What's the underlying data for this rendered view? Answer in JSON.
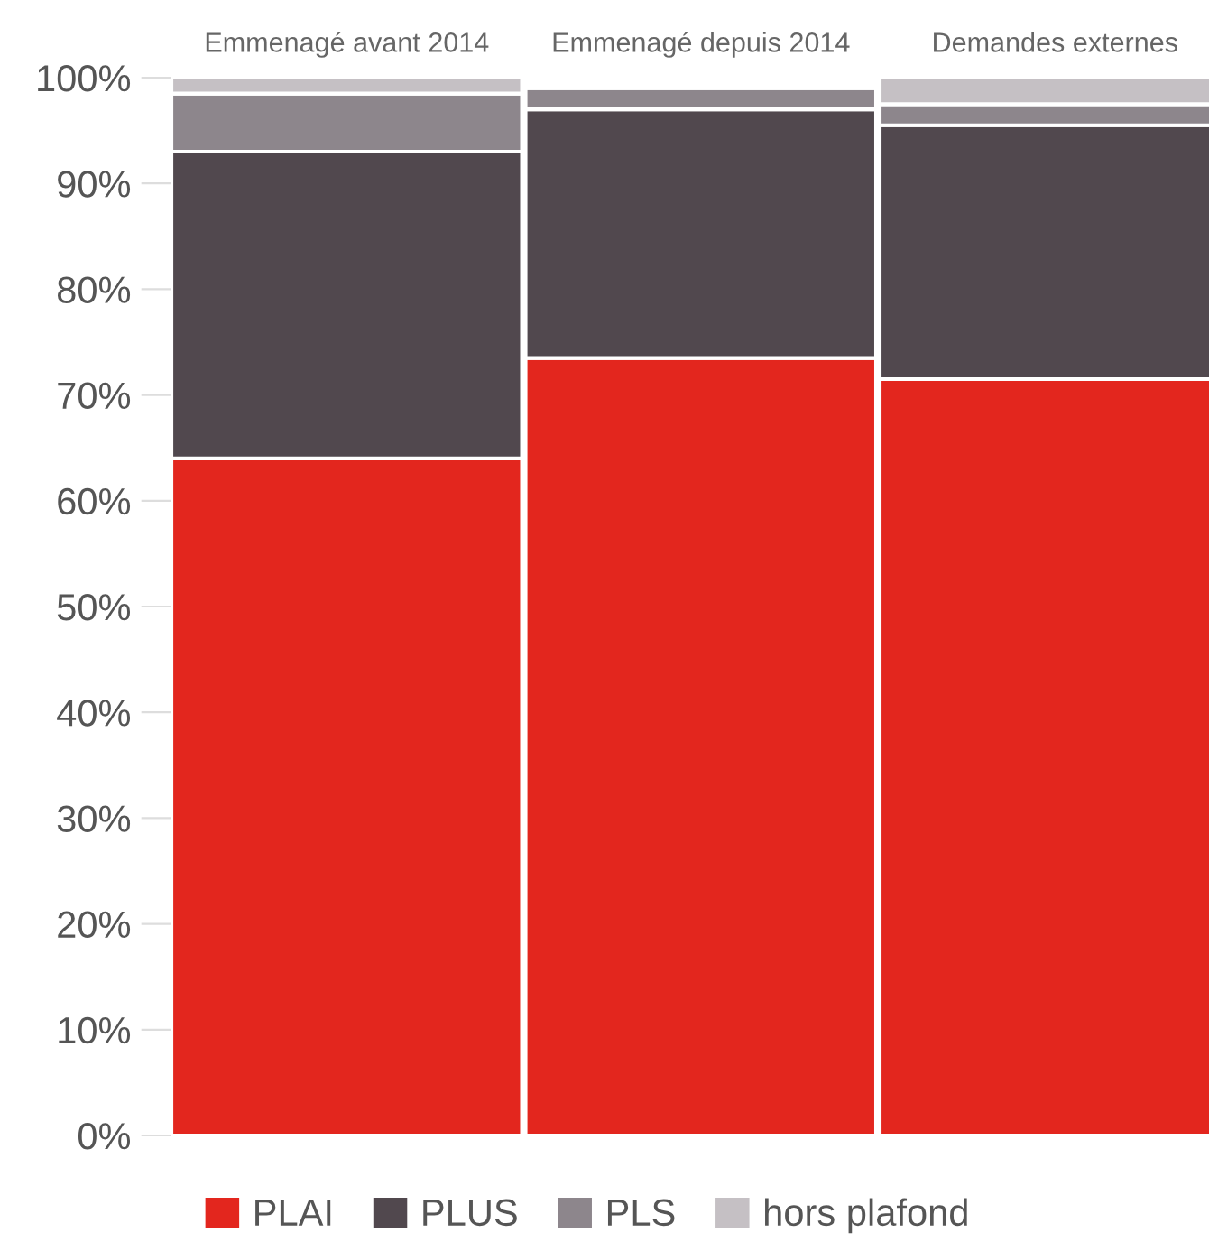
{
  "chart_data": {
    "type": "bar",
    "stacked": true,
    "categories": [
      "Emmenagé avant 2014",
      "Emmenagé depuis 2014",
      "Demandes externes"
    ],
    "series": [
      {
        "name": "PLAI",
        "color": "#e3261e",
        "values": [
          64,
          73.5,
          71.5
        ]
      },
      {
        "name": "PLUS",
        "color": "#51484e",
        "values": [
          29,
          23.5,
          24
        ]
      },
      {
        "name": "PLS",
        "color": "#8d868c",
        "values": [
          5.5,
          2,
          2
        ]
      },
      {
        "name": "hors plafond",
        "color": "#c5c0c4",
        "values": [
          1.5,
          0,
          2.5
        ]
      }
    ],
    "ylim": [
      0,
      100
    ],
    "yticks": [
      {
        "value": 0,
        "label": "0%"
      },
      {
        "value": 10,
        "label": "10%"
      },
      {
        "value": 20,
        "label": "20%"
      },
      {
        "value": 30,
        "label": "30%"
      },
      {
        "value": 40,
        "label": "40%"
      },
      {
        "value": 50,
        "label": "50%"
      },
      {
        "value": 60,
        "label": "60%"
      },
      {
        "value": 70,
        "label": "70%"
      },
      {
        "value": 80,
        "label": "80%"
      },
      {
        "value": 90,
        "label": "90%"
      },
      {
        "value": 100,
        "label": "100%"
      }
    ],
    "grid": false,
    "legend": "bottom"
  }
}
